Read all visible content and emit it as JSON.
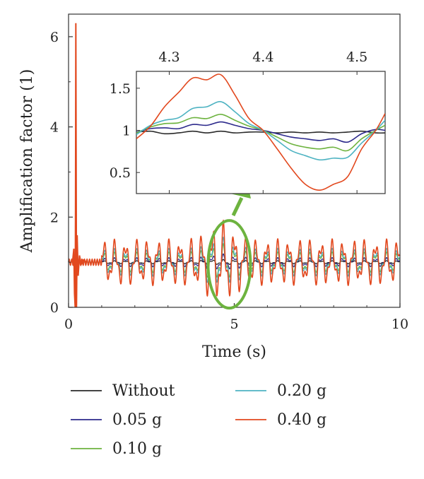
{
  "chart_data": {
    "type": "line",
    "title": "",
    "xlabel": "Time (s)",
    "ylabel": "Amplification factor (1)",
    "xlim": [
      0,
      10
    ],
    "ylim": [
      0,
      6.5
    ],
    "xticks": [
      "0",
      "5",
      "10"
    ],
    "yticks": [
      "0",
      "2",
      "4",
      "6"
    ],
    "grid": false,
    "legend_position": "bottom",
    "main_series": [
      {
        "name": "Without",
        "color": "#2a2a2a",
        "amplitude": 0.03
      },
      {
        "name": "0.05 g",
        "color": "#2d2a8c",
        "amplitude": 0.09
      },
      {
        "name": "0.10 g",
        "color": "#6db33f",
        "amplitude": 0.2
      },
      {
        "name": "0.20 g",
        "color": "#4eb3c2",
        "amplitude": 0.27
      },
      {
        "name": "0.40 g",
        "color": "#e2481e",
        "amplitude": 0.45
      }
    ],
    "spike": {
      "series": "0.40 g",
      "x": 0.22,
      "peak": 6.3,
      "min": 0
    },
    "inset": {
      "xlim": [
        4.265,
        4.53
      ],
      "ylim": [
        0.25,
        1.7
      ],
      "xticks": [
        "4.3",
        "4.4",
        "4.5"
      ],
      "yticks": [
        "0.5",
        "1",
        "1.5"
      ],
      "x": [
        4.265,
        4.28,
        4.295,
        4.31,
        4.325,
        4.34,
        4.355,
        4.37,
        4.385,
        4.4,
        4.415,
        4.43,
        4.445,
        4.46,
        4.475,
        4.49,
        4.505,
        4.52,
        4.53
      ],
      "series": [
        {
          "name": "Without",
          "values": [
            0.98,
            0.99,
            0.96,
            0.97,
            0.99,
            0.97,
            0.99,
            0.97,
            0.98,
            0.98,
            0.97,
            0.98,
            0.97,
            0.98,
            0.97,
            0.98,
            0.99,
            0.97,
            0.97
          ]
        },
        {
          "name": "0.05 g",
          "values": [
            0.98,
            1.02,
            1.03,
            1.02,
            1.07,
            1.06,
            1.1,
            1.06,
            1.02,
            1.0,
            0.96,
            0.92,
            0.9,
            0.88,
            0.9,
            0.86,
            0.96,
            1.01,
            1.0
          ]
        },
        {
          "name": "0.10 g",
          "values": [
            0.97,
            1.04,
            1.08,
            1.09,
            1.15,
            1.14,
            1.19,
            1.12,
            1.05,
            1.0,
            0.92,
            0.84,
            0.8,
            0.78,
            0.8,
            0.76,
            0.9,
            1.0,
            1.06
          ]
        },
        {
          "name": "0.20 g",
          "values": [
            0.95,
            1.06,
            1.12,
            1.15,
            1.26,
            1.28,
            1.34,
            1.22,
            1.08,
            1.0,
            0.88,
            0.76,
            0.7,
            0.65,
            0.67,
            0.68,
            0.85,
            1.0,
            1.12
          ]
        },
        {
          "name": "0.40 g",
          "values": [
            0.9,
            1.05,
            1.28,
            1.45,
            1.62,
            1.6,
            1.66,
            1.42,
            1.14,
            1.0,
            0.78,
            0.55,
            0.36,
            0.29,
            0.36,
            0.45,
            0.78,
            1.0,
            1.2
          ]
        }
      ]
    },
    "legend": [
      "Without",
      "0.05 g",
      "0.10 g",
      "0.20 g",
      "0.40 g"
    ],
    "annotation": {
      "ellipse_center": [
        4.85,
        1.0
      ],
      "ellipse_color": "#6db33f",
      "arrow_color": "#6db33f"
    }
  }
}
